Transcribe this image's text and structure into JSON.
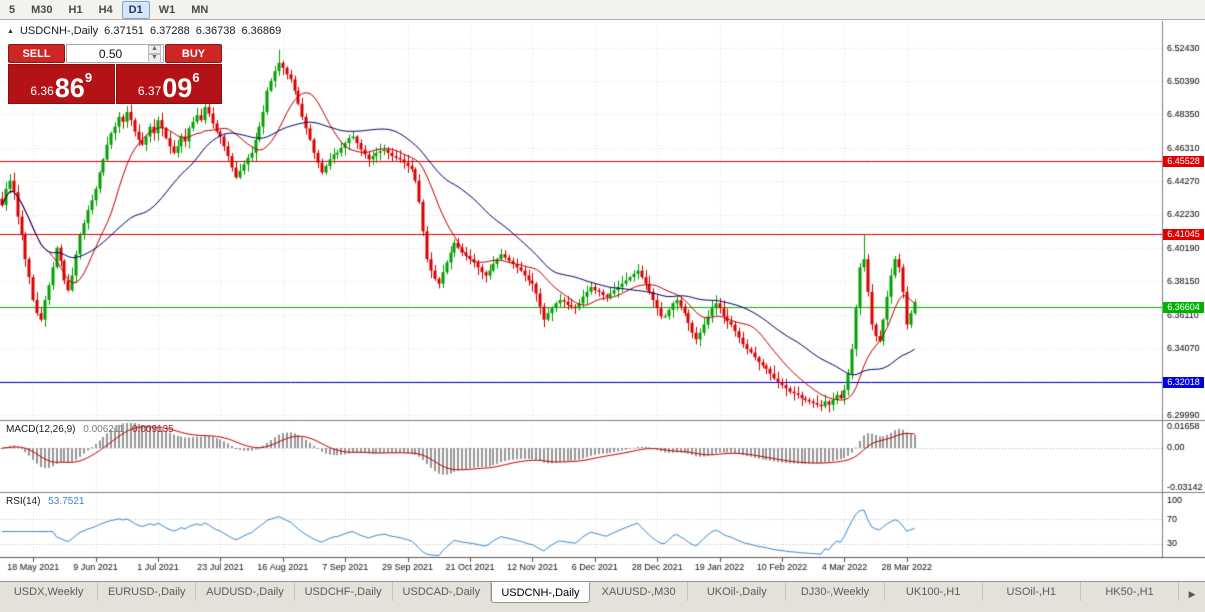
{
  "toolbar": {
    "timeframes": [
      {
        "label": "5",
        "active": false
      },
      {
        "label": "M30",
        "active": false
      },
      {
        "label": "H1",
        "active": false
      },
      {
        "label": "H4",
        "active": false
      },
      {
        "label": "D1",
        "active": true
      },
      {
        "label": "W1",
        "active": false
      },
      {
        "label": "MN",
        "active": false
      }
    ]
  },
  "chart_header": {
    "collapse_icon": "▲",
    "symbol": "USDCNH-,Daily",
    "open": "6.37151",
    "high": "6.37288",
    "low": "6.36738",
    "close": "6.36869"
  },
  "trade_panel": {
    "sell_label": "SELL",
    "buy_label": "BUY",
    "lot": "0.50",
    "lot_up_icon": "▲",
    "lot_down_icon": "▼",
    "sell_price": {
      "big": "6.36",
      "pips": "86",
      "point": "9"
    },
    "buy_price": {
      "big": "6.37",
      "pips": "09",
      "point": "6"
    }
  },
  "indicators": {
    "macd": {
      "name": "MACD(12,26,9)",
      "value_main": "0.006211",
      "value_signal": "0.009135",
      "axis_labels": [
        "0.01658",
        "0.00",
        "-0.03142"
      ]
    },
    "rsi": {
      "name": "RSI(14)",
      "value": "53.7521",
      "axis_labels": [
        "100",
        "70",
        "30"
      ]
    }
  },
  "chart_data": {
    "type": "candlestick",
    "title": "USDCNH-,Daily",
    "price_axis_labels": [
      "6.52430",
      "6.50390",
      "6.48350",
      "6.46310",
      "6.44270",
      "6.42230",
      "6.40190",
      "6.38150",
      "6.36110",
      "6.34070",
      "6.32030",
      "6.29990"
    ],
    "price_range": {
      "top": 6.54,
      "bottom": 6.2985
    },
    "date_labels": [
      "18 May 2021",
      "9 Jun 2021",
      "1 Jul 2021",
      "23 Jul 2021",
      "16 Aug 2021",
      "7 Sep 2021",
      "29 Sep 2021",
      "21 Oct 2021",
      "12 Nov 2021",
      "6 Dec 2021",
      "28 Dec 2021",
      "19 Jan 2022",
      "10 Feb 2022",
      "4 Mar 2022",
      "28 Mar 2022"
    ],
    "bars_per_label": 16,
    "first_label_bar_index": 8,
    "closes": [
      6.428,
      6.438,
      6.443,
      6.436,
      6.421,
      6.41,
      6.395,
      6.384,
      6.37,
      6.362,
      6.358,
      6.37,
      6.379,
      6.39,
      6.402,
      6.394,
      6.382,
      6.376,
      6.385,
      6.398,
      6.41,
      6.417,
      6.425,
      6.431,
      6.438,
      6.448,
      6.456,
      6.465,
      6.472,
      6.476,
      6.482,
      6.479,
      6.485,
      6.48,
      6.473,
      6.468,
      6.465,
      6.47,
      6.476,
      6.472,
      6.48,
      6.475,
      6.469,
      6.464,
      6.46,
      6.464,
      6.47,
      6.467,
      6.475,
      6.479,
      6.483,
      6.48,
      6.488,
      6.484,
      6.478,
      6.473,
      6.47,
      6.464,
      6.458,
      6.451,
      6.445,
      6.449,
      6.453,
      6.457,
      6.46,
      6.468,
      6.476,
      6.485,
      6.498,
      6.504,
      6.51,
      6.515,
      6.512,
      6.508,
      6.505,
      6.498,
      6.49,
      6.482,
      6.475,
      6.468,
      6.46,
      6.454,
      6.448,
      6.452,
      6.456,
      6.459,
      6.46,
      6.463,
      6.466,
      6.469,
      6.47,
      6.466,
      6.462,
      6.459,
      6.456,
      6.458,
      6.46,
      6.461,
      6.462,
      6.46,
      6.458,
      6.457,
      6.456,
      6.454,
      6.452,
      6.45,
      6.443,
      6.43,
      6.412,
      6.395,
      6.388,
      6.383,
      6.38,
      6.387,
      6.393,
      6.399,
      6.405,
      6.402,
      6.399,
      6.397,
      6.395,
      6.393,
      6.39,
      6.387,
      6.385,
      6.388,
      6.392,
      6.395,
      6.398,
      6.396,
      6.394,
      6.392,
      6.39,
      6.388,
      6.385,
      6.382,
      6.38,
      6.374,
      6.366,
      6.358,
      6.362,
      6.365,
      6.368,
      6.37,
      6.369,
      6.367,
      6.366,
      6.365,
      6.368,
      6.372,
      6.375,
      6.378,
      6.376,
      6.375,
      6.373,
      6.372,
      6.374,
      6.376,
      6.378,
      6.38,
      6.382,
      6.384,
      6.386,
      6.388,
      6.384,
      6.38,
      6.375,
      6.37,
      6.365,
      6.36,
      6.36,
      6.364,
      6.368,
      6.37,
      6.366,
      6.362,
      6.356,
      6.35,
      6.346,
      6.35,
      6.355,
      6.36,
      6.365,
      6.368,
      6.365,
      6.36,
      6.357,
      6.355,
      6.351,
      6.347,
      6.343,
      6.34,
      6.338,
      6.335,
      6.332,
      6.33,
      6.328,
      6.325,
      6.322,
      6.32,
      6.318,
      6.316,
      6.314,
      6.313,
      6.312,
      6.31,
      6.309,
      6.308,
      6.307,
      6.306,
      6.305,
      6.308,
      6.306,
      6.309,
      6.312,
      6.31,
      6.315,
      6.325,
      6.34,
      6.365,
      6.39,
      6.395,
      6.375,
      6.355,
      6.348,
      6.345,
      6.358,
      6.372,
      6.385,
      6.395,
      6.39,
      6.375,
      6.355,
      6.362,
      6.3687
    ],
    "wick_high_overrides": {
      "71": 6.523,
      "221": 6.41
    },
    "wick_low_overrides": {
      "210": 6.302
    },
    "hlines": [
      {
        "price": 6.45528,
        "label": "6.45528",
        "color": "#e00000"
      },
      {
        "price": 6.41045,
        "label": "6.41045",
        "color": "#e00000"
      },
      {
        "price": 6.36604,
        "label": "6.36604",
        "color": "#00b400"
      },
      {
        "price": 6.32018,
        "label": "6.32018",
        "color": "#0000e0"
      }
    ],
    "overlays": [
      {
        "name": "ma-fast",
        "period": 13,
        "color": "#c00000"
      },
      {
        "name": "ma-slow",
        "period": 34,
        "color": "#000066"
      }
    ],
    "candle_colors": {
      "up": "#00a000",
      "down": "#d80000"
    }
  },
  "tabs": {
    "active": "USDCNH-,Daily",
    "scroll_right_icon": "▶",
    "items": [
      "USDX,Weekly",
      "EURUSD-,Daily",
      "AUDUSD-,Daily",
      "USDCHF-,Daily",
      "USDCAD-,Daily",
      "USDCNH-,Daily",
      "XAUUSD-,M30",
      "UKOil-,Daily",
      "DJ30-,Weekly",
      "UK100-,H1",
      "USOil-,H1",
      "HK50-,H1"
    ]
  }
}
